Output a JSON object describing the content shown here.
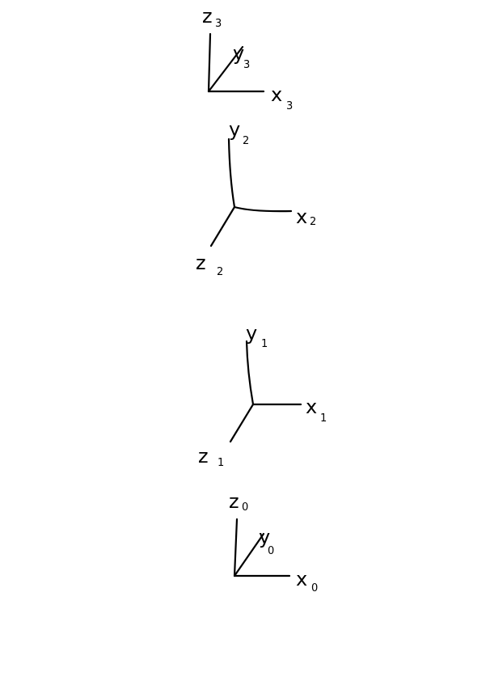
{
  "frames": [
    {
      "id": "frame-3",
      "axes": [
        {
          "letter": "z",
          "sub": "3"
        },
        {
          "letter": "y",
          "sub": "3"
        },
        {
          "letter": "x",
          "sub": "3"
        }
      ]
    },
    {
      "id": "frame-2",
      "axes": [
        {
          "letter": "y",
          "sub": "2"
        },
        {
          "letter": "x",
          "sub": "2"
        },
        {
          "letter": "z",
          "sub": "2"
        }
      ]
    },
    {
      "id": "frame-1",
      "axes": [
        {
          "letter": "y",
          "sub": "1"
        },
        {
          "letter": "x",
          "sub": "1"
        },
        {
          "letter": "z",
          "sub": "1"
        }
      ]
    },
    {
      "id": "frame-0",
      "axes": [
        {
          "letter": "z",
          "sub": "0"
        },
        {
          "letter": "y",
          "sub": "0"
        },
        {
          "letter": "x",
          "sub": "0"
        }
      ]
    }
  ]
}
